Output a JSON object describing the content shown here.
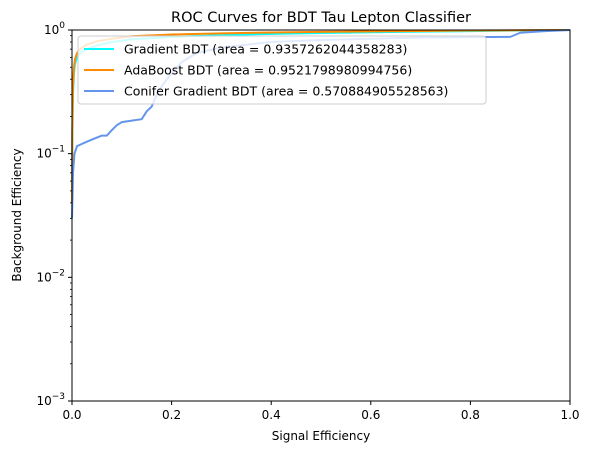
{
  "chart_data": {
    "type": "line",
    "title": "ROC Curves for BDT Tau Lepton Classifier",
    "xlabel": "Signal Efficiency",
    "ylabel": "Background Efficiency",
    "xlim": [
      0.0,
      1.0
    ],
    "ylim": [
      0.001,
      1.0
    ],
    "yscale": "log",
    "grid": false,
    "legend_position": "upper-left",
    "xticks": [
      {
        "value": 0.0,
        "label": "0.0"
      },
      {
        "value": 0.2,
        "label": "0.2"
      },
      {
        "value": 0.4,
        "label": "0.4"
      },
      {
        "value": 0.6,
        "label": "0.6"
      },
      {
        "value": 0.8,
        "label": "0.8"
      },
      {
        "value": 1.0,
        "label": "1.0"
      }
    ],
    "yticks": [
      {
        "value": 0.001,
        "base": "10",
        "exp": "−3"
      },
      {
        "value": 0.01,
        "base": "10",
        "exp": "−2"
      },
      {
        "value": 0.1,
        "base": "10",
        "exp": "−1"
      },
      {
        "value": 1.0,
        "base": "10",
        "exp": "0"
      }
    ],
    "series": [
      {
        "name": "Gradient BDT (area = 0.9357262044358283)",
        "color": "#00ffff",
        "points": [
          [
            0.0,
            0.04
          ],
          [
            0.0006,
            0.12
          ],
          [
            0.002,
            0.3
          ],
          [
            0.004,
            0.45
          ],
          [
            0.006,
            0.53
          ],
          [
            0.01,
            0.6
          ],
          [
            0.015,
            0.64
          ],
          [
            0.02,
            0.67
          ],
          [
            0.03,
            0.7
          ],
          [
            0.05,
            0.75
          ],
          [
            0.08,
            0.8
          ],
          [
            0.12,
            0.84
          ],
          [
            0.2,
            0.88
          ],
          [
            0.3,
            0.91
          ],
          [
            0.4,
            0.93
          ],
          [
            0.5,
            0.945
          ],
          [
            0.6,
            0.96
          ],
          [
            0.7,
            0.97
          ],
          [
            0.8,
            0.98
          ],
          [
            0.9,
            0.99
          ],
          [
            1.0,
            1.0
          ]
        ]
      },
      {
        "name": "AdaBoost BDT (area = 0.9521798980994756)",
        "color": "#ff8c00",
        "points": [
          [
            0.0,
            0.04
          ],
          [
            0.0006,
            0.15
          ],
          [
            0.002,
            0.35
          ],
          [
            0.004,
            0.5
          ],
          [
            0.006,
            0.58
          ],
          [
            0.01,
            0.65
          ],
          [
            0.015,
            0.69
          ],
          [
            0.02,
            0.72
          ],
          [
            0.03,
            0.76
          ],
          [
            0.05,
            0.81
          ],
          [
            0.08,
            0.85
          ],
          [
            0.12,
            0.89
          ],
          [
            0.2,
            0.92
          ],
          [
            0.3,
            0.94
          ],
          [
            0.4,
            0.955
          ],
          [
            0.5,
            0.965
          ],
          [
            0.6,
            0.975
          ],
          [
            0.7,
            0.982
          ],
          [
            0.8,
            0.99
          ],
          [
            0.9,
            0.995
          ],
          [
            1.0,
            1.0
          ]
        ]
      },
      {
        "name": "Conifer Gradient BDT (area = 0.570884905528563)",
        "color": "#6495ed",
        "points": [
          [
            0.0,
            0.03
          ],
          [
            0.002,
            0.07
          ],
          [
            0.005,
            0.1
          ],
          [
            0.01,
            0.115
          ],
          [
            0.02,
            0.12
          ],
          [
            0.03,
            0.125
          ],
          [
            0.04,
            0.13
          ],
          [
            0.05,
            0.135
          ],
          [
            0.06,
            0.14
          ],
          [
            0.07,
            0.14
          ],
          [
            0.08,
            0.155
          ],
          [
            0.09,
            0.17
          ],
          [
            0.1,
            0.18
          ],
          [
            0.12,
            0.185
          ],
          [
            0.14,
            0.19
          ],
          [
            0.15,
            0.22
          ],
          [
            0.16,
            0.24
          ],
          [
            0.17,
            0.3
          ],
          [
            0.18,
            0.35
          ],
          [
            0.2,
            0.45
          ],
          [
            0.22,
            0.55
          ],
          [
            0.25,
            0.65
          ],
          [
            0.3,
            0.72
          ],
          [
            0.35,
            0.76
          ],
          [
            0.4,
            0.8
          ],
          [
            0.5,
            0.83
          ],
          [
            0.6,
            0.85
          ],
          [
            0.7,
            0.87
          ],
          [
            0.75,
            0.87
          ],
          [
            0.8,
            0.875
          ],
          [
            0.88,
            0.88
          ],
          [
            0.9,
            0.95
          ],
          [
            0.95,
            0.98
          ],
          [
            1.0,
            1.0
          ]
        ]
      }
    ]
  }
}
